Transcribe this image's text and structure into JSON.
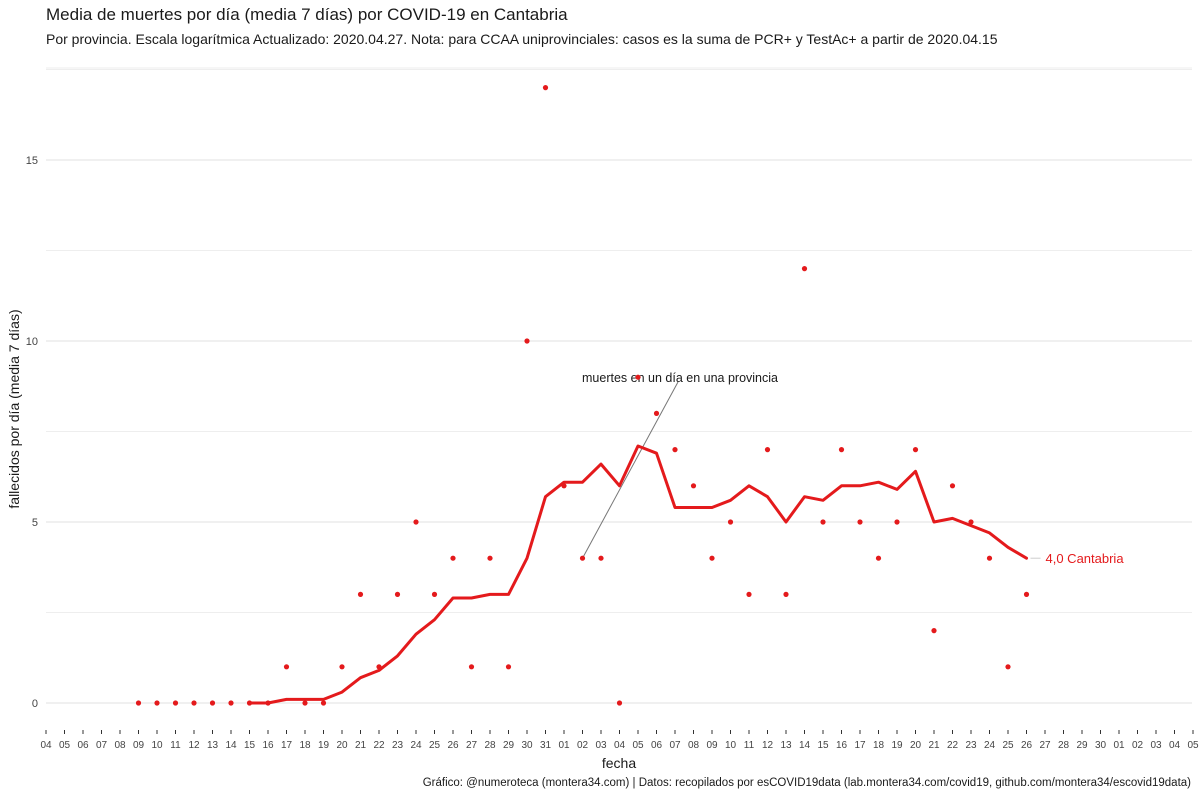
{
  "title": "Media de muertes por día (media 7 días) por COVID-19 en Cantabria",
  "subtitle": "Por provincia. Escala logarítmica  Actualizado: 2020.04.27. Nota: para CCAA uniprovinciales: casos es la suma de PCR+ y TestAc+ a partir de 2020.04.15",
  "caption": "Gráfico: @numeroteca (montera34.com) | Datos: recopilados por esCOVID19data (lab.montera34.com/covid19, github.com/montera34/escovid19data)",
  "colors": {
    "series": "#e41a1c",
    "grid": "#e8e8e8",
    "annotation_line": "#777777"
  },
  "chart_data": {
    "type": "line",
    "xlabel": "fecha",
    "ylabel": "fallecidos por día (media 7 días)",
    "ylim": [
      -0.9,
      18.5
    ],
    "yticks": [
      0,
      5,
      10,
      15
    ],
    "x_ticks": [
      "04",
      "05",
      "06",
      "07",
      "08",
      "09",
      "10",
      "11",
      "12",
      "13",
      "14",
      "15",
      "16",
      "17",
      "18",
      "19",
      "20",
      "21",
      "22",
      "23",
      "24",
      "25",
      "26",
      "27",
      "28",
      "29",
      "30",
      "31",
      "01",
      "02",
      "03",
      "04",
      "05",
      "06",
      "07",
      "08",
      "09",
      "10",
      "11",
      "12",
      "13",
      "14",
      "15",
      "16",
      "17",
      "18",
      "19",
      "20",
      "21",
      "22",
      "23",
      "24",
      "25",
      "26",
      "27",
      "28",
      "29",
      "30",
      "01",
      "02",
      "03",
      "04",
      "05"
    ],
    "x_start": "2020-03-04",
    "grid": true,
    "series": [
      {
        "name": "Cantabria",
        "type": "line",
        "start": "2020-03-15",
        "values": [
          0.0,
          0.0,
          0.1,
          0.1,
          0.1,
          0.3,
          0.7,
          0.9,
          1.3,
          1.9,
          2.3,
          2.9,
          2.9,
          3.0,
          3.0,
          4.0,
          5.7,
          6.1,
          6.1,
          6.6,
          6.0,
          7.1,
          6.9,
          5.4,
          5.4,
          5.4,
          5.6,
          6.0,
          5.7,
          5.0,
          5.7,
          5.6,
          6.0,
          6.0,
          6.1,
          5.9,
          6.4,
          5.0,
          5.1,
          4.9,
          4.7,
          4.3,
          4.0
        ]
      },
      {
        "name": "muertes en un día en una provincia",
        "type": "scatter",
        "start": "2020-03-09",
        "values": [
          0,
          0,
          0,
          0,
          0,
          0,
          0,
          0,
          1,
          0,
          0,
          1,
          3,
          1,
          3,
          5,
          3,
          4,
          1,
          4,
          1,
          10,
          17,
          6,
          4,
          4,
          0,
          9,
          8,
          7,
          6,
          4,
          5,
          3,
          7,
          3,
          12,
          5,
          7,
          5,
          4,
          5,
          7,
          2,
          6,
          5,
          4,
          1,
          3
        ]
      }
    ],
    "end_label": "4,0 Cantabria",
    "annotation": {
      "text": "muertes en un día en una provincia",
      "target_date": "2020-04-02",
      "target_value": 4
    }
  }
}
